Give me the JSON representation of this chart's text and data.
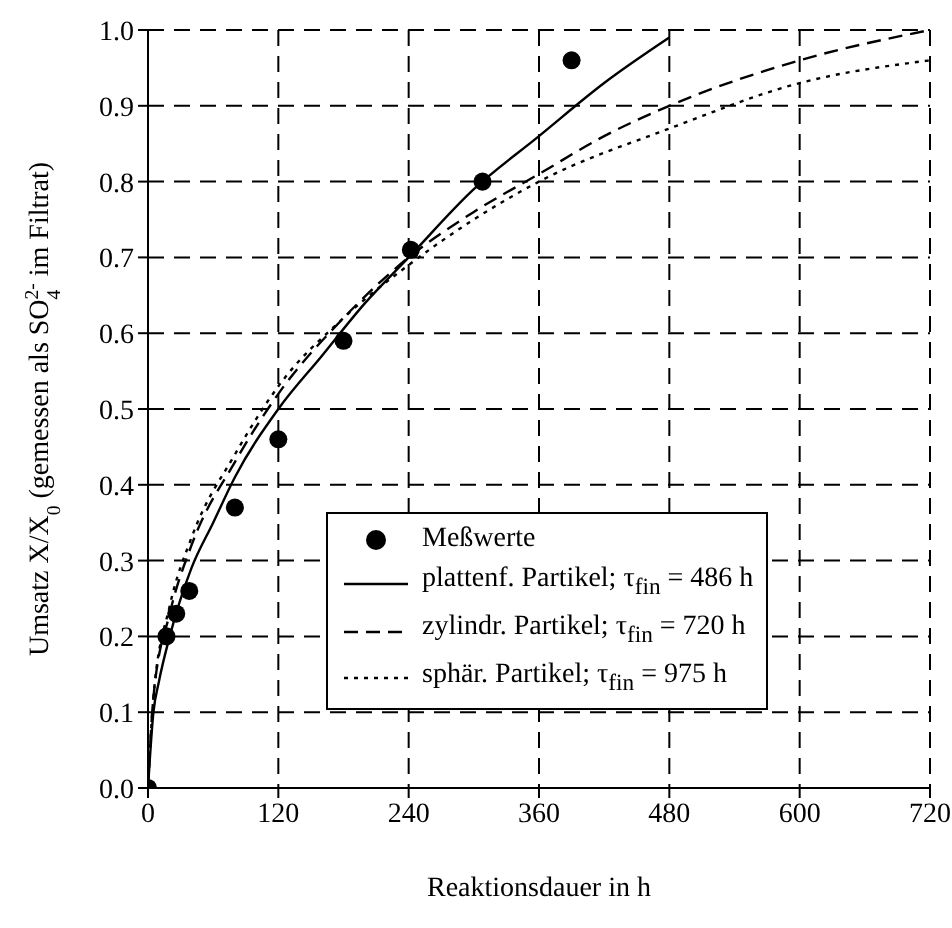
{
  "chart_data": {
    "type": "line",
    "xlabel": "Reaktionsdauer in h",
    "ylabel": "Umsatz X/X$_{0}$ (gemessen als SO$_{4}$$^{2-}$ im Filtrat)",
    "xlim": [
      0,
      720
    ],
    "xticks": [
      0,
      120,
      240,
      360,
      480,
      600,
      720
    ],
    "ylim": [
      0,
      1
    ],
    "yticks": [
      {
        "value": 0,
        "label": "0.0"
      },
      0.1,
      0.2,
      0.3,
      0.4,
      0.5,
      0.6,
      0.7,
      0.8,
      0.9,
      {
        "value": 1,
        "label": "1.0"
      }
    ],
    "grid": true,
    "legend": "bottom right",
    "marker": "none",
    "series": [
      {
        "name": "Meßwerte",
        "type": "scatter",
        "marker": "circle",
        "color": "#000000",
        "x": [
          0,
          17,
          26,
          38,
          80,
          120,
          180,
          242,
          308,
          390
        ],
        "values": [
          0.0,
          0.2,
          0.23,
          0.26,
          0.37,
          0.46,
          0.59,
          0.71,
          0.8,
          0.96
        ]
      },
      {
        "name": "plattenf. Partikel; τ$_{fin}$ = 486 h",
        "color": "#000000",
        "line_style": "solid",
        "x": [
          0,
          5,
          10,
          20,
          40,
          60,
          80,
          120,
          160,
          200,
          240,
          300,
          360,
          420,
          480
        ],
        "values": [
          0,
          0.1,
          0.14,
          0.2,
          0.29,
          0.35,
          0.41,
          0.5,
          0.57,
          0.64,
          0.7,
          0.79,
          0.86,
          0.93,
          0.99
        ]
      },
      {
        "name": "zylindr. Partikel; τ$_{fin}$ = 720 h",
        "color": "#000000",
        "line_style": "dashed",
        "x": [
          0,
          5,
          20,
          40,
          80,
          120,
          180,
          240,
          300,
          360,
          420,
          480,
          600,
          720
        ],
        "values": [
          0,
          0.12,
          0.23,
          0.32,
          0.43,
          0.52,
          0.62,
          0.7,
          0.76,
          0.81,
          0.86,
          0.9,
          0.96,
          1.0
        ]
      },
      {
        "name": "sphär. Partikel; τ$_{fin}$ = 975 h",
        "color": "#000000",
        "line_style": "dotted",
        "x": [
          0,
          5,
          20,
          40,
          80,
          120,
          180,
          240,
          300,
          360,
          480,
          600,
          720
        ],
        "values": [
          0,
          0.12,
          0.24,
          0.33,
          0.44,
          0.53,
          0.62,
          0.69,
          0.75,
          0.8,
          0.87,
          0.93,
          0.96
        ]
      }
    ]
  }
}
